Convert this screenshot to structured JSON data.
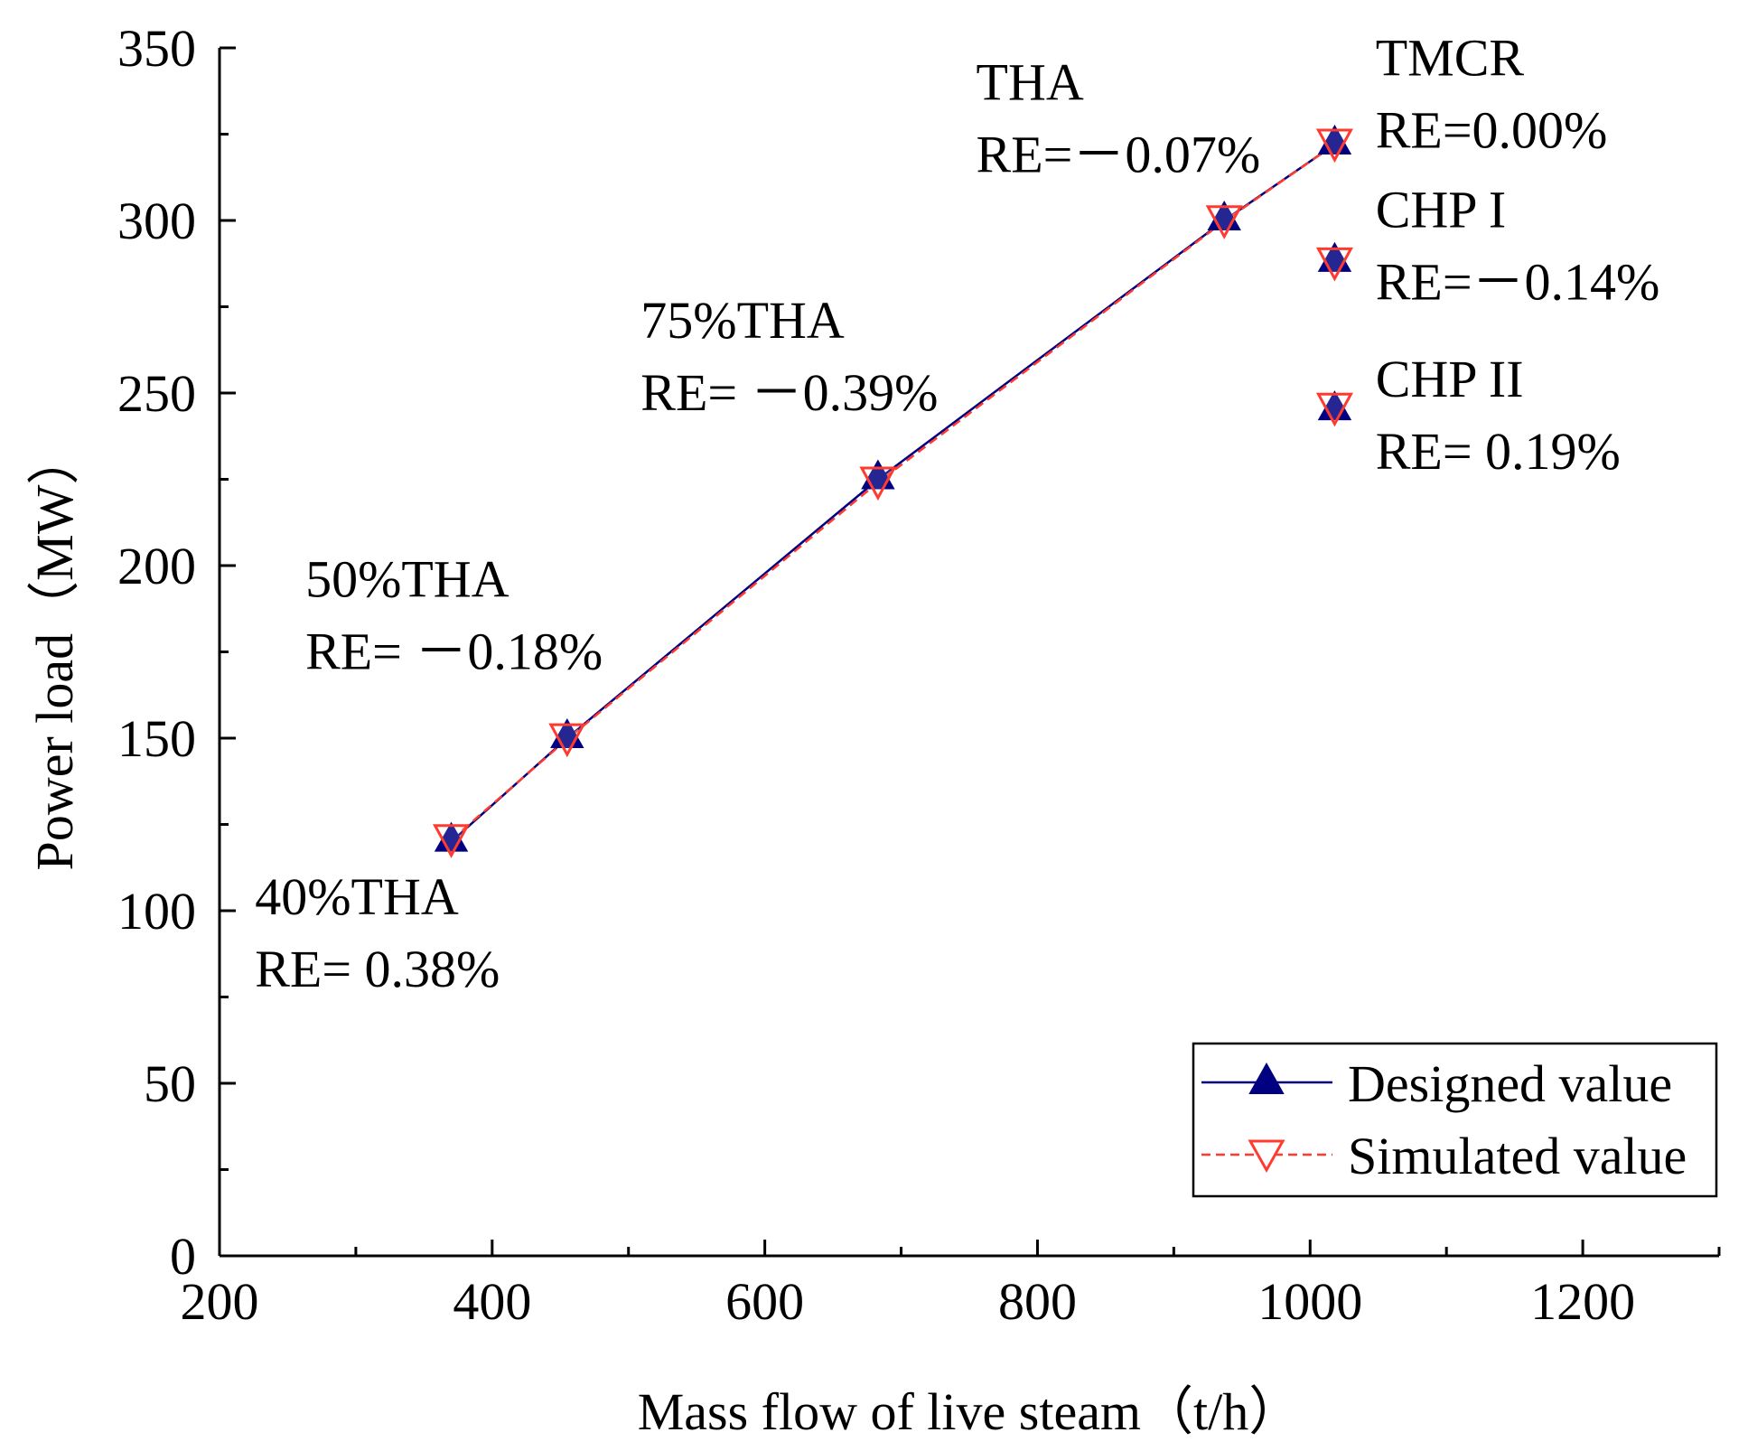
{
  "chart_data": {
    "type": "line",
    "title": "",
    "xlabel": "Mass flow of live steam（t/h）",
    "ylabel": "Power load（MW）",
    "xlim": [
      200,
      1300
    ],
    "ylim": [
      0,
      350
    ],
    "xticks_major": [
      200,
      400,
      600,
      800,
      1000,
      1200
    ],
    "xticks_minor": [
      300,
      500,
      700,
      900,
      1100,
      1300
    ],
    "yticks_major": [
      0,
      50,
      100,
      150,
      200,
      250,
      300,
      350
    ],
    "yticks_minor": [
      25,
      75,
      125,
      175,
      225,
      275,
      325
    ],
    "grid": false,
    "legend_position": "bottom-right",
    "series": [
      {
        "name": "Designed value",
        "color": "#000080",
        "marker": "triangle-up",
        "line": "solid",
        "points": [
          {
            "x": 370,
            "y": 120,
            "connected": true
          },
          {
            "x": 455,
            "y": 150,
            "connected": true
          },
          {
            "x": 683,
            "y": 225,
            "connected": true
          },
          {
            "x": 937,
            "y": 300,
            "connected": true
          },
          {
            "x": 1018,
            "y": 322,
            "connected": true
          },
          {
            "x": 1018,
            "y": 288,
            "connected": false
          },
          {
            "x": 1018,
            "y": 245,
            "connected": false
          }
        ]
      },
      {
        "name": "Simulated value",
        "color": "#ff3b30",
        "marker": "triangle-down",
        "line": "dashed",
        "points": [
          {
            "x": 370,
            "y": 120.5,
            "connected": true
          },
          {
            "x": 455,
            "y": 149.7,
            "connected": true
          },
          {
            "x": 683,
            "y": 224.1,
            "connected": true
          },
          {
            "x": 937,
            "y": 299.8,
            "connected": true
          },
          {
            "x": 1018,
            "y": 322,
            "connected": true
          },
          {
            "x": 1018,
            "y": 287.6,
            "connected": false
          },
          {
            "x": 1018,
            "y": 245.5,
            "connected": false
          }
        ]
      }
    ],
    "annotations": [
      {
        "id": "40tha",
        "lines": [
          "40%THA",
          "RE= 0.38%"
        ],
        "anchor": {
          "x": 226,
          "y": 99
        }
      },
      {
        "id": "50tha",
        "lines": [
          "50%THA",
          "RE= －0.18%"
        ],
        "anchor": {
          "x": 263,
          "y": 191
        }
      },
      {
        "id": "75tha",
        "lines": [
          "75%THA",
          "RE= －0.39%"
        ],
        "anchor": {
          "x": 509,
          "y": 266
        }
      },
      {
        "id": "tha",
        "lines": [
          "THA",
          "RE=－0.07%"
        ],
        "anchor": {
          "x": 755,
          "y": 335
        }
      },
      {
        "id": "tmcr",
        "lines": [
          "TMCR",
          "RE=0.00%"
        ],
        "anchor": {
          "x": 1048,
          "y": 342
        }
      },
      {
        "id": "chp1",
        "lines": [
          "CHP I",
          "RE=－0.14%"
        ],
        "anchor": {
          "x": 1048,
          "y": 298
        }
      },
      {
        "id": "chp2",
        "lines": [
          "CHP II",
          "RE= 0.19%"
        ],
        "anchor": {
          "x": 1048,
          "y": 249
        }
      }
    ]
  }
}
